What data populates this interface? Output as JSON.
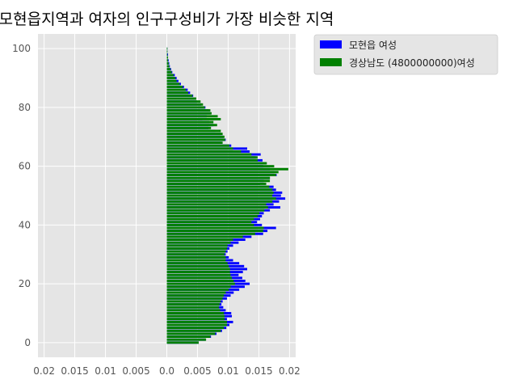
{
  "chart_data": {
    "type": "bar",
    "orientation": "horizontal",
    "title": "모현읍지역과 여자의 인구구성비가 가장 비슷한 지역",
    "xlabel": "",
    "ylabel": "",
    "xlim": [
      -0.021,
      0.021
    ],
    "ylim": [
      -5,
      105
    ],
    "x_tick_values": [
      -0.02,
      -0.015,
      -0.01,
      -0.005,
      0,
      0.005,
      0.01,
      0.015,
      0.02
    ],
    "x_tick_labels": [
      "0.02",
      "0.015",
      "0.01",
      "0.005",
      "0.0",
      "0.005",
      "0.01",
      "0.015",
      "0.02"
    ],
    "y_tick_values": [
      0,
      20,
      40,
      60,
      80,
      100
    ],
    "y_tick_labels": [
      "0",
      "20",
      "40",
      "60",
      "80",
      "100"
    ],
    "grid": true,
    "legend_position": "outside-top-right",
    "categories_note": "age 0-100",
    "series": [
      {
        "name": "모현읍 여성",
        "color": "#0000ff",
        "values": [
          0.0052,
          0.0063,
          0.0072,
          0.0081,
          0.009,
          0.0097,
          0.0102,
          0.0108,
          0.0098,
          0.0106,
          0.0105,
          0.0096,
          0.0092,
          0.0089,
          0.0091,
          0.0098,
          0.0104,
          0.0109,
          0.0118,
          0.0127,
          0.0135,
          0.0128,
          0.0123,
          0.0117,
          0.0124,
          0.0131,
          0.0126,
          0.0118,
          0.0108,
          0.0101,
          0.0096,
          0.0099,
          0.0102,
          0.0108,
          0.0117,
          0.0128,
          0.0138,
          0.0157,
          0.0164,
          0.0178,
          0.0155,
          0.0147,
          0.0152,
          0.0155,
          0.0158,
          0.0168,
          0.0185,
          0.0174,
          0.0183,
          0.0193,
          0.0186,
          0.0188,
          0.0178,
          0.0174,
          0.0152,
          0.0158,
          0.0168,
          0.0179,
          0.0175,
          0.0168,
          0.0157,
          0.0162,
          0.0156,
          0.0145,
          0.0153,
          0.0135,
          0.0131,
          0.0105,
          0.0089,
          0.0096,
          0.0092,
          0.0088,
          0.0079,
          0.0068,
          0.0076,
          0.0069,
          0.0058,
          0.0065,
          0.0071,
          0.0068,
          0.0063,
          0.0056,
          0.0049,
          0.0045,
          0.0043,
          0.0038,
          0.0034,
          0.0028,
          0.0023,
          0.0019,
          0.0016,
          0.0013,
          0.0009,
          0.0007,
          0.0005,
          0.0004,
          0.0003,
          0.0002,
          0.0002,
          0.0001,
          0.0001
        ]
      },
      {
        "name": "경상남도  (4800000000)여성",
        "color": "#008000",
        "values": [
          0.0052,
          0.0064,
          0.0071,
          0.0079,
          0.0088,
          0.0093,
          0.0098,
          0.0098,
          0.0094,
          0.0094,
          0.0093,
          0.0087,
          0.0085,
          0.0086,
          0.0088,
          0.0091,
          0.0093,
          0.0096,
          0.0101,
          0.0104,
          0.0111,
          0.0109,
          0.0106,
          0.0104,
          0.0103,
          0.0103,
          0.0101,
          0.0099,
          0.0096,
          0.0096,
          0.0094,
          0.0096,
          0.0098,
          0.0099,
          0.0104,
          0.0108,
          0.0124,
          0.0144,
          0.0157,
          0.0158,
          0.0142,
          0.0138,
          0.0142,
          0.0148,
          0.0151,
          0.0159,
          0.0165,
          0.0162,
          0.0172,
          0.0178,
          0.0172,
          0.0174,
          0.0172,
          0.0167,
          0.0162,
          0.0168,
          0.0168,
          0.0178,
          0.0182,
          0.0198,
          0.0175,
          0.0163,
          0.0148,
          0.0148,
          0.0138,
          0.0121,
          0.0108,
          0.0102,
          0.0091,
          0.0095,
          0.0094,
          0.0091,
          0.0088,
          0.0072,
          0.0082,
          0.0076,
          0.0088,
          0.0083,
          0.0073,
          0.0071,
          0.0062,
          0.0059,
          0.0055,
          0.0048,
          0.0042,
          0.0035,
          0.0031,
          0.0026,
          0.0021,
          0.0016,
          0.0014,
          0.0011,
          0.0008,
          0.0006,
          0.0004,
          0.0003,
          0.0002,
          0.0002,
          0.0001,
          0.0001,
          0.0001
        ]
      }
    ]
  }
}
